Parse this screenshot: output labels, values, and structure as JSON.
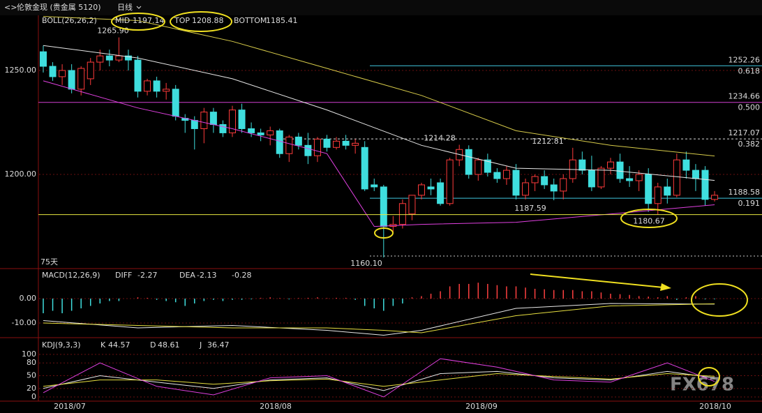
{
  "header": {
    "title": "伦敦金现 (贵金属 5120)",
    "period": "日线",
    "watermark": "FX678"
  },
  "x_labels": [
    "2018/07",
    "2018/08",
    "2018/09",
    "2018/10"
  ],
  "chart_data": [
    {
      "type": "candlestick",
      "indicator": "BOLL(26,26,2)",
      "up_color": "#ff3b3b",
      "down_color": "#3fdede",
      "ylim": [
        1155.4,
        1276.5
      ],
      "yticks": [
        {
          "value": 1250,
          "label": "1250.00"
        },
        {
          "value": 1200,
          "label": "1200.00"
        }
      ],
      "grid": true,
      "candles": [
        [
          1259,
          1262,
          1249,
          1252
        ],
        [
          1252,
          1254,
          1245,
          1247
        ],
        [
          1247,
          1253,
          1243,
          1250
        ],
        [
          1250,
          1253,
          1239,
          1241
        ],
        [
          1241,
          1252,
          1238,
          1251
        ],
        [
          1246,
          1256,
          1243,
          1254
        ],
        [
          1254,
          1260,
          1250,
          1257
        ],
        [
          1257,
          1260,
          1252,
          1255
        ],
        [
          1255,
          1265.9,
          1254,
          1257
        ],
        [
          1257,
          1260,
          1250,
          1255
        ],
        [
          1255,
          1257,
          1237,
          1240
        ],
        [
          1240,
          1246,
          1238,
          1245
        ],
        [
          1245,
          1247,
          1237,
          1240
        ],
        [
          1240,
          1244,
          1236,
          1241
        ],
        [
          1241,
          1243,
          1226,
          1228
        ],
        [
          1227,
          1229,
          1220,
          1226
        ],
        [
          1226,
          1228,
          1212,
          1222
        ],
        [
          1222,
          1232,
          1215,
          1230
        ],
        [
          1230,
          1232,
          1220,
          1224
        ],
        [
          1224,
          1226,
          1218,
          1220
        ],
        [
          1220,
          1233,
          1218,
          1231
        ],
        [
          1231,
          1234,
          1220,
          1222
        ],
        [
          1222,
          1225,
          1218,
          1220
        ],
        [
          1220,
          1222,
          1216,
          1219
        ],
        [
          1219,
          1223,
          1214,
          1221
        ],
        [
          1221,
          1222,
          1208,
          1210
        ],
        [
          1210,
          1219,
          1206,
          1218
        ],
        [
          1218,
          1220,
          1212,
          1214
        ],
        [
          1214,
          1220,
          1205,
          1209
        ],
        [
          1209,
          1218,
          1206,
          1217
        ],
        [
          1217,
          1219,
          1211,
          1213
        ],
        [
          1213,
          1218,
          1212,
          1216
        ],
        [
          1216,
          1219,
          1212,
          1214
        ],
        [
          1214,
          1217,
          1210,
          1215
        ],
        [
          1213,
          1216,
          1192,
          1193
        ],
        [
          1195,
          1198,
          1192,
          1194
        ],
        [
          1194,
          1195,
          1160.1,
          1175
        ],
        [
          1175,
          1180,
          1172,
          1176
        ],
        [
          1176,
          1188,
          1174,
          1186
        ],
        [
          1181,
          1190,
          1178,
          1190
        ],
        [
          1190,
          1196,
          1188,
          1195
        ],
        [
          1194,
          1198,
          1190,
          1193
        ],
        [
          1196,
          1198,
          1185,
          1186
        ],
        [
          1186,
          1208,
          1185,
          1207
        ],
        [
          1207,
          1214.28,
          1204,
          1212
        ],
        [
          1212,
          1214,
          1198,
          1200
        ],
        [
          1200,
          1208,
          1197,
          1207
        ],
        [
          1207,
          1210,
          1199,
          1201
        ],
        [
          1201,
          1203,
          1196,
          1198
        ],
        [
          1198,
          1204,
          1195,
          1202
        ],
        [
          1202,
          1205,
          1188,
          1190
        ],
        [
          1190,
          1198,
          1188,
          1196
        ],
        [
          1196,
          1200,
          1192,
          1199
        ],
        [
          1199,
          1202,
          1193,
          1195
        ],
        [
          1195,
          1198,
          1187.59,
          1192
        ],
        [
          1192,
          1200,
          1188,
          1198
        ],
        [
          1198,
          1212.81,
          1196,
          1207
        ],
        [
          1207,
          1211,
          1200,
          1202
        ],
        [
          1202,
          1209,
          1192,
          1194
        ],
        [
          1194,
          1204,
          1193,
          1203
        ],
        [
          1203,
          1208,
          1200,
          1206
        ],
        [
          1206,
          1210,
          1196,
          1198
        ],
        [
          1198,
          1204,
          1194,
          1197
        ],
        [
          1197,
          1202,
          1192,
          1200
        ],
        [
          1200,
          1203,
          1182,
          1186
        ],
        [
          1186,
          1196,
          1180.67,
          1194
        ],
        [
          1194,
          1198,
          1186,
          1190
        ],
        [
          1190,
          1210,
          1189,
          1207
        ],
        [
          1207,
          1211,
          1198,
          1202
        ],
        [
          1202,
          1205,
          1192,
          1198
        ],
        [
          1202,
          1204,
          1185,
          1188
        ],
        [
          1188,
          1192,
          1187,
          1190
        ]
      ],
      "series": [
        {
          "name": "MID",
          "color": "#e8e8e8",
          "x": [
            0,
            10,
            20,
            30,
            40,
            50,
            60,
            71
          ],
          "values": [
            1262,
            1256,
            1246,
            1231,
            1214,
            1203,
            1202,
            1197.14
          ]
        },
        {
          "name": "TOP",
          "color": "#d8cc4a",
          "x": [
            0,
            10,
            20,
            30,
            40,
            50,
            60,
            71
          ],
          "values": [
            1276,
            1274,
            1264,
            1251,
            1238,
            1221,
            1214,
            1208.88
          ]
        },
        {
          "name": "BOTTOM",
          "color": "#e040e0",
          "x": [
            0,
            10,
            20,
            30,
            35,
            40,
            50,
            60,
            71
          ],
          "values": [
            1245,
            1232,
            1222,
            1210,
            1175,
            1176,
            1177,
            1181,
            1185.41
          ]
        }
      ],
      "levels": [
        {
          "value": 1252.26,
          "label": "1252.26",
          "ratio": "0.618",
          "color": "#40c8e0"
        },
        {
          "value": 1234.66,
          "label": "1234.66",
          "ratio": "0.500",
          "color": "#d040d0"
        },
        {
          "value": 1217.07,
          "label": "1217.07",
          "ratio": "0.382",
          "color": "#dddddd"
        },
        {
          "value": 1188.58,
          "label": "1188.58",
          "ratio": "0.191",
          "color": "#40c8e0"
        }
      ],
      "annotations": [
        {
          "value": 1265.9,
          "label": "1265.90",
          "color": "#ff5050"
        },
        {
          "value": 1214.28,
          "label": "1214.28",
          "color": "#ff5050"
        },
        {
          "value": 1212.81,
          "label": "1212.81",
          "color": "#ff5050"
        },
        {
          "value": 1187.59,
          "label": "1187.59",
          "color": "#40d8e0"
        },
        {
          "value": 1180.67,
          "label": "1180.67",
          "color": "#40d8e0"
        },
        {
          "value": 1160.1,
          "label": "1160.10",
          "color": "#40d8e0"
        }
      ],
      "period_label": "75天"
    },
    {
      "type": "macd",
      "indicator": "MACD(12,26,9)",
      "ylim": [
        -15.7,
        11.7
      ],
      "yticks": [
        {
          "value": 0,
          "label": "0.00"
        },
        {
          "value": -10,
          "label": "-10.00"
        }
      ],
      "grid": true,
      "histogram": [
        -6,
        -5,
        -6,
        -5,
        -4,
        -3,
        -2,
        -1,
        -1,
        0,
        0.5,
        0.3,
        -0.5,
        -1,
        -1.5,
        -3,
        -2,
        -1,
        -0.5,
        -1,
        -0.5,
        -0.5,
        -0.3,
        0.3,
        0.5,
        0.2,
        -0.3,
        0.2,
        0.3,
        0.5,
        0.2,
        0.3,
        0.3,
        -0.5,
        -3,
        -4,
        -5,
        -3,
        -2,
        0.5,
        1,
        2,
        3,
        5,
        6,
        6,
        6.5,
        6,
        5.5,
        5,
        5,
        4.5,
        4,
        3.8,
        3.5,
        3.5,
        3.5,
        3,
        3,
        2.5,
        2,
        1.8,
        1.5,
        1,
        0.8,
        0.5,
        1,
        -0.5,
        0.5,
        1,
        -0.3,
        -0.28
      ],
      "series": [
        {
          "name": "DIFF",
          "color": "#e8e8e8",
          "x": [
            0,
            10,
            20,
            30,
            36,
            40,
            50,
            60,
            71
          ],
          "values": [
            -9,
            -12,
            -11,
            -13,
            -15,
            -13,
            -4,
            -2,
            -2.27
          ]
        },
        {
          "name": "DEA",
          "color": "#e8e040",
          "x": [
            0,
            10,
            20,
            30,
            36,
            40,
            50,
            60,
            71
          ],
          "values": [
            -10,
            -11,
            -12,
            -12,
            -13,
            -14,
            -7,
            -3,
            -2.13
          ]
        }
      ]
    },
    {
      "type": "line",
      "indicator": "KDJ(9,3,3)",
      "ylim": [
        -9.8,
        134.4
      ],
      "yticks": [
        100,
        80,
        50,
        20,
        0
      ],
      "grid": true,
      "series": [
        {
          "name": "K",
          "color": "#e8e8e8",
          "x": [
            0,
            6,
            12,
            18,
            24,
            30,
            36,
            42,
            48,
            54,
            60,
            66,
            71
          ],
          "values": [
            20,
            50,
            35,
            20,
            40,
            45,
            15,
            55,
            60,
            45,
            40,
            60,
            44.57
          ]
        },
        {
          "name": "D",
          "color": "#e8e040",
          "x": [
            0,
            6,
            12,
            18,
            24,
            30,
            36,
            42,
            48,
            54,
            60,
            66,
            71
          ],
          "values": [
            25,
            40,
            40,
            30,
            38,
            42,
            25,
            40,
            55,
            48,
            42,
            55,
            48.61
          ]
        },
        {
          "name": "J",
          "color": "#e040e0",
          "x": [
            0,
            6,
            12,
            18,
            24,
            30,
            36,
            42,
            48,
            54,
            60,
            66,
            71
          ],
          "values": [
            10,
            80,
            25,
            5,
            45,
            50,
            0,
            90,
            70,
            40,
            35,
            80,
            36.47
          ]
        }
      ]
    }
  ]
}
